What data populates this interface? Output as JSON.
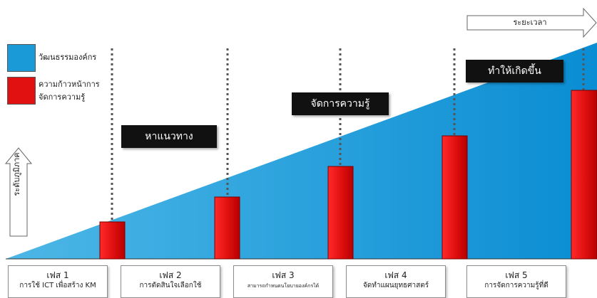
{
  "legend": {
    "culture": {
      "label": "วัฒนธรรมองค์กร",
      "color": "#1a9ad6"
    },
    "progress": {
      "label_line1": "ความก้าวหน้าการ",
      "label_line2": "จัดการความรู้",
      "color": "#e21111"
    }
  },
  "arrows": {
    "time": "ระยะเวลา",
    "level": "ระดับภูมิภาค"
  },
  "labels": {
    "find_way": "หาแนวทาง",
    "km": "จัดการความรู้",
    "make_happen": "ทำให้เกิดขึ้น"
  },
  "phases": [
    {
      "title": "เฟส 1",
      "desc": "การใช้ ICT เพื่อสร้าง KM"
    },
    {
      "title": "เฟส 2",
      "desc": "การตัดสินใจเลือกใช้"
    },
    {
      "title": "เฟส 3",
      "desc": "สามารถกำหนดนโยบายองค์กรได้"
    },
    {
      "title": "เฟส 4",
      "desc": "จัดทำแผนยุทธศาสตร์"
    },
    {
      "title": "เฟส 5",
      "desc": "การจัดการความรู้ที่ดี"
    }
  ],
  "colors": {
    "culture_fill": "#1a9ad6",
    "culture_fill_dark": "#0a80c4",
    "bar_fill": "#e21111"
  }
}
